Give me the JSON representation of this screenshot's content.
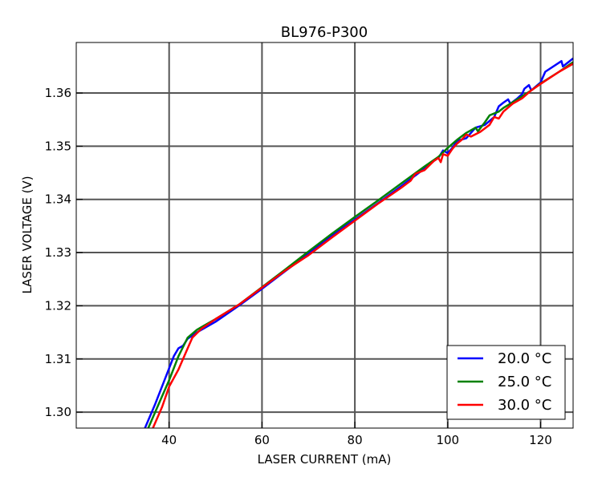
{
  "chart_data": {
    "type": "line",
    "title": "BL976-P300",
    "xlabel": "LASER CURRENT (mA)",
    "ylabel": "LASER VOLTAGE (V)",
    "xlim": [
      20,
      127
    ],
    "ylim": [
      1.297,
      1.3695
    ],
    "x_ticks": [
      40,
      60,
      80,
      100,
      120
    ],
    "x_tick_labels": [
      "40",
      "60",
      "80",
      "100",
      "120"
    ],
    "y_ticks": [
      1.3,
      1.31,
      1.32,
      1.33,
      1.34,
      1.35,
      1.36
    ],
    "y_tick_labels": [
      "1.30",
      "1.31",
      "1.32",
      "1.33",
      "1.34",
      "1.35",
      "1.36"
    ],
    "grid": true,
    "legend_position": "bottom-right",
    "series": [
      {
        "name": "20.0 °C",
        "color": "#0000ff",
        "points": [
          [
            34.8,
            1.297
          ],
          [
            37,
            1.3015
          ],
          [
            39,
            1.306
          ],
          [
            41,
            1.3105
          ],
          [
            42,
            1.312
          ],
          [
            43,
            1.3125
          ],
          [
            44,
            1.3138
          ],
          [
            46,
            1.315
          ],
          [
            48,
            1.316
          ],
          [
            50,
            1.317
          ],
          [
            55,
            1.32
          ],
          [
            60,
            1.3232
          ],
          [
            65,
            1.3265
          ],
          [
            70,
            1.3298
          ],
          [
            75,
            1.3332
          ],
          [
            80,
            1.3362
          ],
          [
            85,
            1.3393
          ],
          [
            90,
            1.3425
          ],
          [
            95,
            1.3458
          ],
          [
            97,
            1.3472
          ],
          [
            98,
            1.3478
          ],
          [
            99,
            1.3492
          ],
          [
            100,
            1.3487
          ],
          [
            101,
            1.3497
          ],
          [
            102,
            1.351
          ],
          [
            104,
            1.3515
          ],
          [
            106,
            1.3535
          ],
          [
            108,
            1.354
          ],
          [
            110,
            1.3555
          ],
          [
            111,
            1.3575
          ],
          [
            112,
            1.3582
          ],
          [
            113,
            1.3588
          ],
          [
            113.5,
            1.358
          ],
          [
            115,
            1.359
          ],
          [
            116,
            1.3598
          ],
          [
            116.5,
            1.3608
          ],
          [
            117.5,
            1.3615
          ],
          [
            118,
            1.3605
          ],
          [
            120,
            1.362
          ],
          [
            121,
            1.364
          ],
          [
            124.5,
            1.366
          ],
          [
            124.8,
            1.365
          ],
          [
            127,
            1.3665
          ]
        ]
      },
      {
        "name": "25.0 °C",
        "color": "#008000",
        "points": [
          [
            35.5,
            1.297
          ],
          [
            38,
            1.302
          ],
          [
            40,
            1.306
          ],
          [
            42,
            1.3105
          ],
          [
            44,
            1.314
          ],
          [
            46,
            1.3155
          ],
          [
            48,
            1.3165
          ],
          [
            50,
            1.3175
          ],
          [
            55,
            1.3202
          ],
          [
            60,
            1.3235
          ],
          [
            65,
            1.3268
          ],
          [
            70,
            1.3302
          ],
          [
            75,
            1.3335
          ],
          [
            80,
            1.3367
          ],
          [
            85,
            1.3398
          ],
          [
            90,
            1.343
          ],
          [
            95,
            1.3462
          ],
          [
            98,
            1.348
          ],
          [
            100,
            1.3497
          ],
          [
            102,
            1.3512
          ],
          [
            104,
            1.3525
          ],
          [
            106,
            1.3535
          ],
          [
            106.5,
            1.3528
          ],
          [
            108,
            1.3545
          ],
          [
            109,
            1.3558
          ],
          [
            111,
            1.3565
          ],
          [
            112,
            1.3572
          ],
          [
            115,
            1.3588
          ],
          [
            118,
            1.3605
          ],
          [
            120,
            1.3618
          ],
          [
            124,
            1.364
          ],
          [
            127,
            1.3658
          ]
        ]
      },
      {
        "name": "30.0 °C",
        "color": "#ff0000",
        "points": [
          [
            36.5,
            1.297
          ],
          [
            38.5,
            1.301
          ],
          [
            40,
            1.3048
          ],
          [
            42,
            1.308
          ],
          [
            44,
            1.312
          ],
          [
            45,
            1.314
          ],
          [
            47,
            1.3157
          ],
          [
            50,
            1.3175
          ],
          [
            55,
            1.3202
          ],
          [
            60,
            1.3234
          ],
          [
            65,
            1.3266
          ],
          [
            70,
            1.3295
          ],
          [
            75,
            1.3328
          ],
          [
            80,
            1.336
          ],
          [
            85,
            1.3392
          ],
          [
            88,
            1.341
          ],
          [
            90,
            1.3422
          ],
          [
            92,
            1.3435
          ],
          [
            93,
            1.3448
          ],
          [
            95,
            1.3455
          ],
          [
            97,
            1.3472
          ],
          [
            98,
            1.3478
          ],
          [
            98.5,
            1.347
          ],
          [
            99,
            1.3485
          ],
          [
            100,
            1.3482
          ],
          [
            101,
            1.3495
          ],
          [
            102,
            1.3505
          ],
          [
            103,
            1.3512
          ],
          [
            104,
            1.3522
          ],
          [
            105,
            1.3518
          ],
          [
            107,
            1.3527
          ],
          [
            109,
            1.354
          ],
          [
            110,
            1.3555
          ],
          [
            111,
            1.3552
          ],
          [
            112,
            1.3565
          ],
          [
            114,
            1.358
          ],
          [
            116,
            1.359
          ],
          [
            118,
            1.3605
          ],
          [
            120,
            1.3617
          ],
          [
            124,
            1.364
          ],
          [
            127,
            1.3655
          ]
        ]
      }
    ]
  }
}
